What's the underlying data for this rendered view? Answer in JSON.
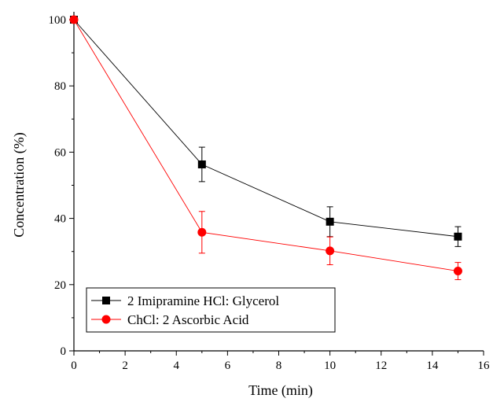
{
  "chart_data": {
    "type": "line",
    "title": "",
    "xlabel": "Time (min)",
    "ylabel": "Concentration (%)",
    "xlim": [
      0,
      16
    ],
    "ylim": [
      0,
      100
    ],
    "xticks": [
      0,
      2,
      4,
      6,
      8,
      10,
      12,
      14,
      16
    ],
    "yticks": [
      0,
      20,
      40,
      60,
      80,
      100
    ],
    "grid": false,
    "legend_position": "bottom-left",
    "series": [
      {
        "name": "2 Imipramine HCl: Glycerol",
        "color": "#000000",
        "marker": "square",
        "x": [
          0,
          5,
          10,
          15
        ],
        "y": [
          100,
          56.3,
          39,
          34.5
        ],
        "error": [
          0,
          5.2,
          4.5,
          3.0
        ]
      },
      {
        "name": "ChCl: 2 Ascorbic Acid",
        "color": "#ff0000",
        "marker": "circle",
        "x": [
          0,
          5,
          10,
          15
        ],
        "y": [
          100,
          35.8,
          30.2,
          24.1
        ],
        "error": [
          0,
          6.3,
          4.2,
          2.6
        ]
      }
    ]
  }
}
